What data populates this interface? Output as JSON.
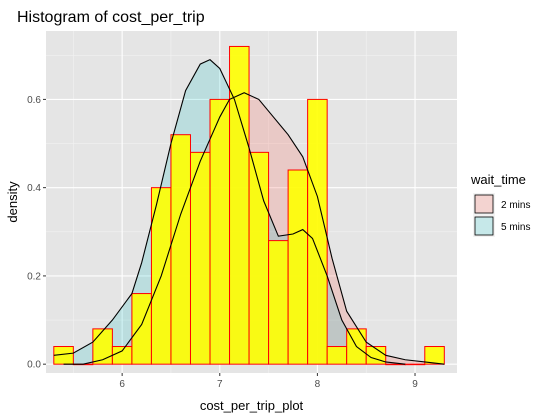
{
  "chart_data": {
    "type": "histogram",
    "title": "Histogram of cost_per_trip",
    "xlabel": "cost_per_trip_plot",
    "ylabel": "density",
    "xlim": [
      5.22,
      9.43
    ],
    "ylim": [
      -0.02,
      0.755
    ],
    "x_ticks": [
      {
        "value": 6,
        "label": "6"
      },
      {
        "value": 7,
        "label": "7"
      },
      {
        "value": 8,
        "label": "8"
      },
      {
        "value": 9,
        "label": "9"
      }
    ],
    "y_ticks": [
      {
        "value": 0.0,
        "label": "0.0"
      },
      {
        "value": 0.2,
        "label": "0.2"
      },
      {
        "value": 0.4,
        "label": "0.4"
      },
      {
        "value": 0.6,
        "label": "0.6"
      }
    ],
    "grid": true,
    "background": "#e5e5e5",
    "histogram": {
      "bin_width": 0.2,
      "fill": "#ffff00",
      "fill_opacity": 0.9,
      "outline": "#ff0000",
      "bins": [
        {
          "x0": 5.3,
          "x1": 5.5,
          "value": 0.04
        },
        {
          "x0": 5.5,
          "x1": 5.7,
          "value": 0.0
        },
        {
          "x0": 5.7,
          "x1": 5.9,
          "value": 0.08
        },
        {
          "x0": 5.9,
          "x1": 6.1,
          "value": 0.04
        },
        {
          "x0": 6.1,
          "x1": 6.3,
          "value": 0.16
        },
        {
          "x0": 6.3,
          "x1": 6.5,
          "value": 0.4
        },
        {
          "x0": 6.5,
          "x1": 6.7,
          "value": 0.52
        },
        {
          "x0": 6.7,
          "x1": 6.9,
          "value": 0.48
        },
        {
          "x0": 6.9,
          "x1": 7.1,
          "value": 0.6
        },
        {
          "x0": 7.1,
          "x1": 7.3,
          "value": 0.72
        },
        {
          "x0": 7.3,
          "x1": 7.5,
          "value": 0.48
        },
        {
          "x0": 7.5,
          "x1": 7.7,
          "value": 0.28
        },
        {
          "x0": 7.7,
          "x1": 7.9,
          "value": 0.44
        },
        {
          "x0": 7.9,
          "x1": 8.1,
          "value": 0.6
        },
        {
          "x0": 8.1,
          "x1": 8.3,
          "value": 0.04
        },
        {
          "x0": 8.3,
          "x1": 8.5,
          "value": 0.08
        },
        {
          "x0": 8.5,
          "x1": 8.7,
          "value": 0.04
        },
        {
          "x0": 8.7,
          "x1": 8.9,
          "value": 0.0
        },
        {
          "x0": 8.9,
          "x1": 9.1,
          "value": 0.0
        },
        {
          "x0": 9.1,
          "x1": 9.3,
          "value": 0.04
        }
      ]
    },
    "legend": {
      "title": "wait_time",
      "position": "right"
    },
    "series": [
      {
        "name": "2 mins",
        "type": "density",
        "fill": "#f8766d",
        "fill_opacity": 0.25,
        "line": "#000000",
        "points": [
          [
            5.4,
            0.0
          ],
          [
            5.6,
            0.0
          ],
          [
            5.8,
            0.01
          ],
          [
            6.0,
            0.03
          ],
          [
            6.2,
            0.09
          ],
          [
            6.4,
            0.2
          ],
          [
            6.6,
            0.34
          ],
          [
            6.8,
            0.46
          ],
          [
            7.0,
            0.56
          ],
          [
            7.1,
            0.6
          ],
          [
            7.25,
            0.615
          ],
          [
            7.4,
            0.6
          ],
          [
            7.55,
            0.56
          ],
          [
            7.7,
            0.52
          ],
          [
            7.85,
            0.47
          ],
          [
            8.0,
            0.38
          ],
          [
            8.15,
            0.24
          ],
          [
            8.3,
            0.12
          ],
          [
            8.5,
            0.05
          ],
          [
            8.7,
            0.02
          ],
          [
            8.9,
            0.01
          ],
          [
            9.1,
            0.005
          ],
          [
            9.3,
            0.0
          ]
        ]
      },
      {
        "name": "5 mins",
        "type": "density",
        "fill": "#00bfc4",
        "fill_opacity": 0.18,
        "line": "#000000",
        "points": [
          [
            5.3,
            0.02
          ],
          [
            5.5,
            0.025
          ],
          [
            5.7,
            0.05
          ],
          [
            5.9,
            0.1
          ],
          [
            6.1,
            0.16
          ],
          [
            6.2,
            0.23
          ],
          [
            6.35,
            0.36
          ],
          [
            6.5,
            0.5
          ],
          [
            6.65,
            0.62
          ],
          [
            6.8,
            0.68
          ],
          [
            6.9,
            0.69
          ],
          [
            7.0,
            0.67
          ],
          [
            7.15,
            0.6
          ],
          [
            7.3,
            0.49
          ],
          [
            7.45,
            0.37
          ],
          [
            7.6,
            0.29
          ],
          [
            7.75,
            0.295
          ],
          [
            7.85,
            0.305
          ],
          [
            7.95,
            0.285
          ],
          [
            8.1,
            0.2
          ],
          [
            8.25,
            0.1
          ],
          [
            8.4,
            0.04
          ],
          [
            8.55,
            0.015
          ],
          [
            8.7,
            0.005
          ],
          [
            8.9,
            0.0
          ]
        ]
      }
    ]
  }
}
